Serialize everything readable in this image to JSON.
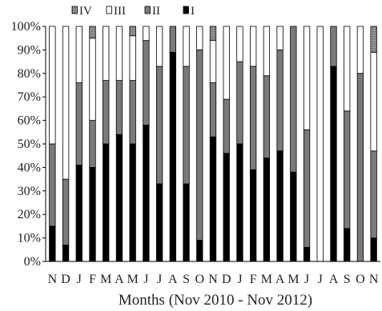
{
  "chart_data": {
    "type": "bar",
    "stacked": true,
    "percent": true,
    "xlabel": "Months (Nov 2010 - Nov 2012)",
    "ylabel": "",
    "ylim": [
      0,
      100
    ],
    "yticks": [
      "0%",
      "10%",
      "20%",
      "30%",
      "40%",
      "50%",
      "60%",
      "70%",
      "80%",
      "90%",
      "100%"
    ],
    "categories": [
      "N",
      "D",
      "J",
      "F",
      "M",
      "A",
      "M",
      "J",
      "J",
      "A",
      "S",
      "O",
      "N",
      "D",
      "J",
      "F",
      "M",
      "A",
      "M",
      "J",
      "J",
      "A",
      "S",
      "O",
      "N"
    ],
    "legend_position": "top",
    "series": [
      {
        "name": "I",
        "color": "#000000",
        "values": [
          15,
          7,
          41,
          40,
          50,
          54,
          50,
          58,
          33,
          89,
          33,
          9,
          53,
          46,
          50,
          39,
          44,
          47,
          38,
          6,
          0,
          83,
          14,
          0,
          10
        ]
      },
      {
        "name": "II",
        "color": "#7a7a7a",
        "values": [
          35,
          28,
          35,
          20,
          27,
          23,
          27,
          36,
          50,
          11,
          50,
          81,
          23,
          23,
          35,
          44,
          35,
          43,
          62,
          50,
          0,
          17,
          50,
          80,
          37
        ]
      },
      {
        "name": "III",
        "color": "#ffffff",
        "values": [
          50,
          65,
          24,
          35,
          23,
          23,
          19,
          6,
          17,
          0,
          17,
          10,
          18,
          31,
          15,
          17,
          21,
          10,
          0,
          44,
          100,
          0,
          36,
          20,
          42
        ]
      },
      {
        "name": "IV",
        "color": "#8c8c8c",
        "values": [
          0,
          0,
          0,
          5,
          0,
          0,
          4,
          0,
          0,
          0,
          0,
          0,
          6,
          0,
          0,
          0,
          0,
          0,
          0,
          0,
          0,
          0,
          0,
          0,
          11
        ]
      }
    ],
    "legend_order": [
      "IV",
      "III",
      "II",
      "I"
    ],
    "grid": false
  }
}
